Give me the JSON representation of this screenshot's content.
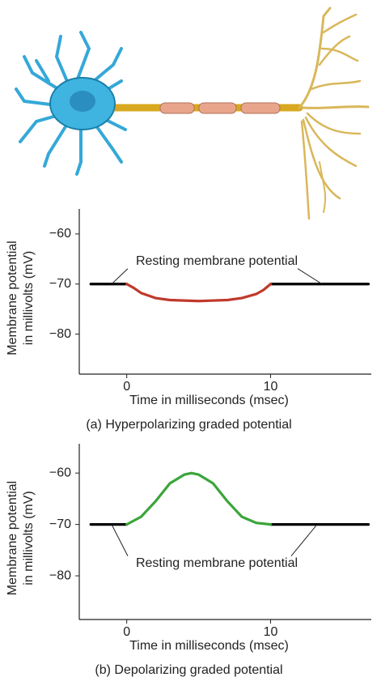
{
  "chart_data": [
    {
      "type": "line",
      "ylabel": [
        "Membrane potential",
        "in millivolts (mV)"
      ],
      "xlabel": "Time in milliseconds (msec)",
      "caption": "(a) Hyperpolarizing graded potential",
      "annotation": "Resting membrane potential",
      "xlim": [
        -3.3,
        17
      ],
      "ylim": [
        -88,
        -55
      ],
      "xticks": [
        0,
        10
      ],
      "yticks": [
        {
          "value": -60,
          "label": "−60"
        },
        {
          "value": -70,
          "label": "−70"
        },
        {
          "value": -80,
          "label": "−80"
        }
      ],
      "x": [
        -2.5,
        0,
        0.5,
        1,
        2,
        3,
        5,
        7,
        8,
        9,
        9.5,
        10,
        16.8
      ],
      "series": [
        {
          "color": "#000000",
          "values": [
            -70,
            -70,
            null,
            null,
            null,
            null,
            null,
            null,
            null,
            null,
            null,
            -70,
            -70
          ]
        },
        {
          "color": "#c0392b",
          "values": [
            null,
            -70,
            -70.8,
            -71.8,
            -72.8,
            -73.2,
            -73.4,
            -73.2,
            -72.8,
            -72,
            -71.2,
            -70,
            null
          ]
        }
      ]
    },
    {
      "type": "line",
      "ylabel": [
        "Membrane potential",
        "in millivolts (mV)"
      ],
      "xlabel": "Time in milliseconds (msec)",
      "caption": "(b) Depolarizing graded potential",
      "annotation": "Resting membrane potential",
      "xlim": [
        -3.3,
        17
      ],
      "ylim": [
        -88.5,
        -54.3
      ],
      "xticks": [
        0,
        10
      ],
      "yticks": [
        {
          "value": -60,
          "label": "−60"
        },
        {
          "value": -70,
          "label": "−70"
        },
        {
          "value": -80,
          "label": "−80"
        }
      ],
      "x": [
        -2.5,
        0,
        1,
        2,
        3,
        4,
        4.5,
        5,
        6,
        7,
        8,
        9,
        10,
        16.8
      ],
      "series": [
        {
          "color": "#000000",
          "values": [
            -70,
            -70,
            null,
            null,
            null,
            null,
            null,
            null,
            null,
            null,
            null,
            null,
            -70,
            -70
          ]
        },
        {
          "color": "#3aa53a",
          "values": [
            null,
            -70,
            -68.5,
            -65.5,
            -62,
            -60.3,
            -60,
            -60.3,
            -62,
            -65.5,
            -68.5,
            -69.7,
            -70,
            null
          ]
        }
      ]
    }
  ]
}
